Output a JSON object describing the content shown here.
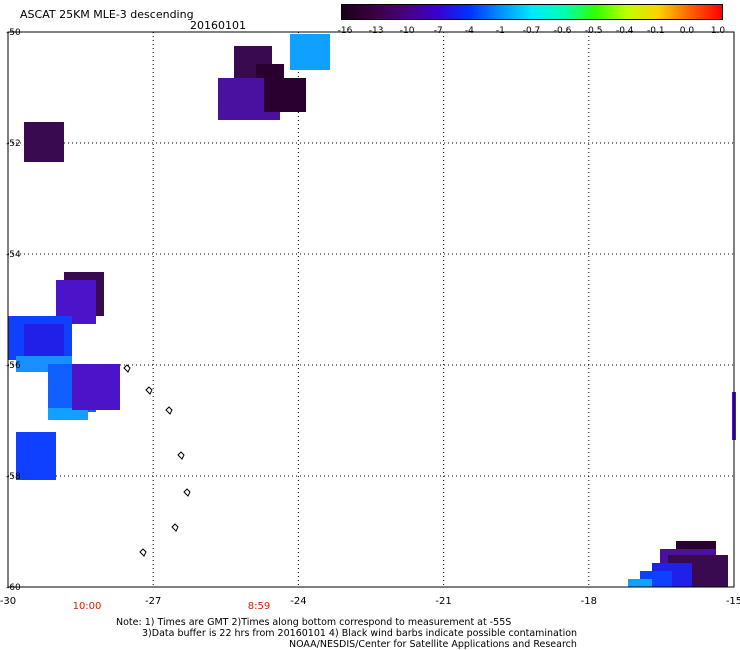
{
  "header": {
    "title": "ASCAT 25KM MLE-3 descending",
    "date": "20160101"
  },
  "colorbar": {
    "labels": [
      "-16",
      "-13",
      "-10",
      "-7",
      "-4",
      "-1",
      "-0.7",
      "-0.6",
      "-0.5",
      "-0.4",
      "-0.1",
      "0.0",
      "1.0"
    ],
    "colors": [
      "#1a001a",
      "#3a0040",
      "#4a0080",
      "#3a00d0",
      "#0030ff",
      "#0090ff",
      "#00e8ff",
      "#00ffb0",
      "#30ff00",
      "#c0ff00",
      "#ffd000",
      "#ff6000",
      "#ff0000"
    ]
  },
  "map": {
    "lat_labels": [
      "-50",
      "-52",
      "-54",
      "-56",
      "-58",
      "-60"
    ],
    "lon_labels": [
      "-30",
      "-27",
      "-24",
      "-21",
      "-18",
      "-15"
    ],
    "time_labels": [
      "10:00",
      "8:59"
    ],
    "time_label_color": "#cc2200",
    "grid": true,
    "lat_range": [
      -50,
      -60
    ],
    "lon_range": [
      -30,
      -15
    ]
  },
  "footer": {
    "line1": "Note: 1) Times are GMT 2)Times along bottom correspond to measurement at -55S",
    "line2": "3)Data buffer is 22 hrs from 20160101 4) Black wind barbs indicate possible contamination",
    "line3": "NOAA/NESDIS/Center for Satellite Applications and Research"
  }
}
